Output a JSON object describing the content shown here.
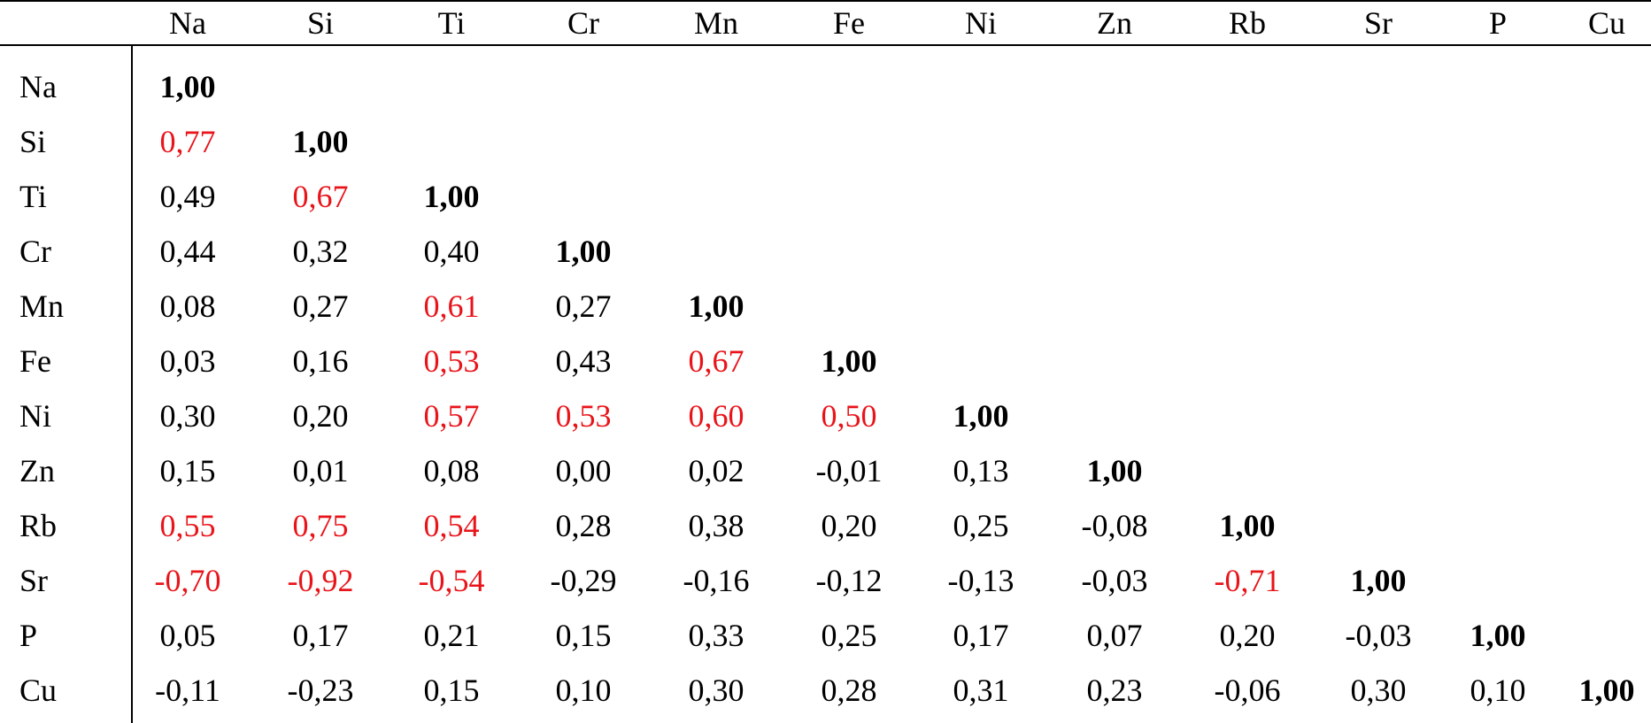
{
  "chart_data": {
    "type": "table",
    "columns": [
      "Na",
      "Si",
      "Ti",
      "Cr",
      "Mn",
      "Fe",
      "Ni",
      "Zn",
      "Rb",
      "Sr",
      "P",
      "Cu"
    ],
    "rows": [
      {
        "label": "Na",
        "values": [
          "1,00"
        ],
        "highlight": [
          false
        ]
      },
      {
        "label": "Si",
        "values": [
          "0,77",
          "1,00"
        ],
        "highlight": [
          true,
          false
        ]
      },
      {
        "label": "Ti",
        "values": [
          "0,49",
          "0,67",
          "1,00"
        ],
        "highlight": [
          false,
          true,
          false
        ]
      },
      {
        "label": "Cr",
        "values": [
          "0,44",
          "0,32",
          "0,40",
          "1,00"
        ],
        "highlight": [
          false,
          false,
          false,
          false
        ]
      },
      {
        "label": "Mn",
        "values": [
          "0,08",
          "0,27",
          "0,61",
          "0,27",
          "1,00"
        ],
        "highlight": [
          false,
          false,
          true,
          false,
          false
        ]
      },
      {
        "label": "Fe",
        "values": [
          "0,03",
          "0,16",
          "0,53",
          "0,43",
          "0,67",
          "1,00"
        ],
        "highlight": [
          false,
          false,
          true,
          false,
          true,
          false
        ]
      },
      {
        "label": "Ni",
        "values": [
          "0,30",
          "0,20",
          "0,57",
          "0,53",
          "0,60",
          "0,50",
          "1,00"
        ],
        "highlight": [
          false,
          false,
          true,
          true,
          true,
          true,
          false
        ]
      },
      {
        "label": "Zn",
        "values": [
          "0,15",
          "0,01",
          "0,08",
          "0,00",
          "0,02",
          "-0,01",
          "0,13",
          "1,00"
        ],
        "highlight": [
          false,
          false,
          false,
          false,
          false,
          false,
          false,
          false
        ]
      },
      {
        "label": "Rb",
        "values": [
          "0,55",
          "0,75",
          "0,54",
          "0,28",
          "0,38",
          "0,20",
          "0,25",
          "-0,08",
          "1,00"
        ],
        "highlight": [
          true,
          true,
          true,
          false,
          false,
          false,
          false,
          false,
          false
        ]
      },
      {
        "label": "Sr",
        "values": [
          "-0,70",
          "-0,92",
          "-0,54",
          "-0,29",
          "-0,16",
          "-0,12",
          "-0,13",
          "-0,03",
          "-0,71",
          "1,00"
        ],
        "highlight": [
          true,
          true,
          true,
          false,
          false,
          false,
          false,
          false,
          true,
          false
        ]
      },
      {
        "label": "P",
        "values": [
          "0,05",
          "0,17",
          "0,21",
          "0,15",
          "0,33",
          "0,25",
          "0,17",
          "0,07",
          "0,20",
          "-0,03",
          "1,00"
        ],
        "highlight": [
          false,
          false,
          false,
          false,
          false,
          false,
          false,
          false,
          false,
          false,
          false
        ]
      },
      {
        "label": "Cu",
        "values": [
          "-0,11",
          "-0,23",
          "0,15",
          "0,10",
          "0,30",
          "0,28",
          "0,31",
          "0,23",
          "-0,06",
          "0,30",
          "0,10",
          "1,00"
        ],
        "highlight": [
          false,
          false,
          false,
          false,
          false,
          false,
          false,
          false,
          false,
          false,
          false,
          false
        ]
      }
    ]
  },
  "colors": {
    "text": "#000000",
    "highlight": "#e8141a",
    "rule": "#000000"
  }
}
